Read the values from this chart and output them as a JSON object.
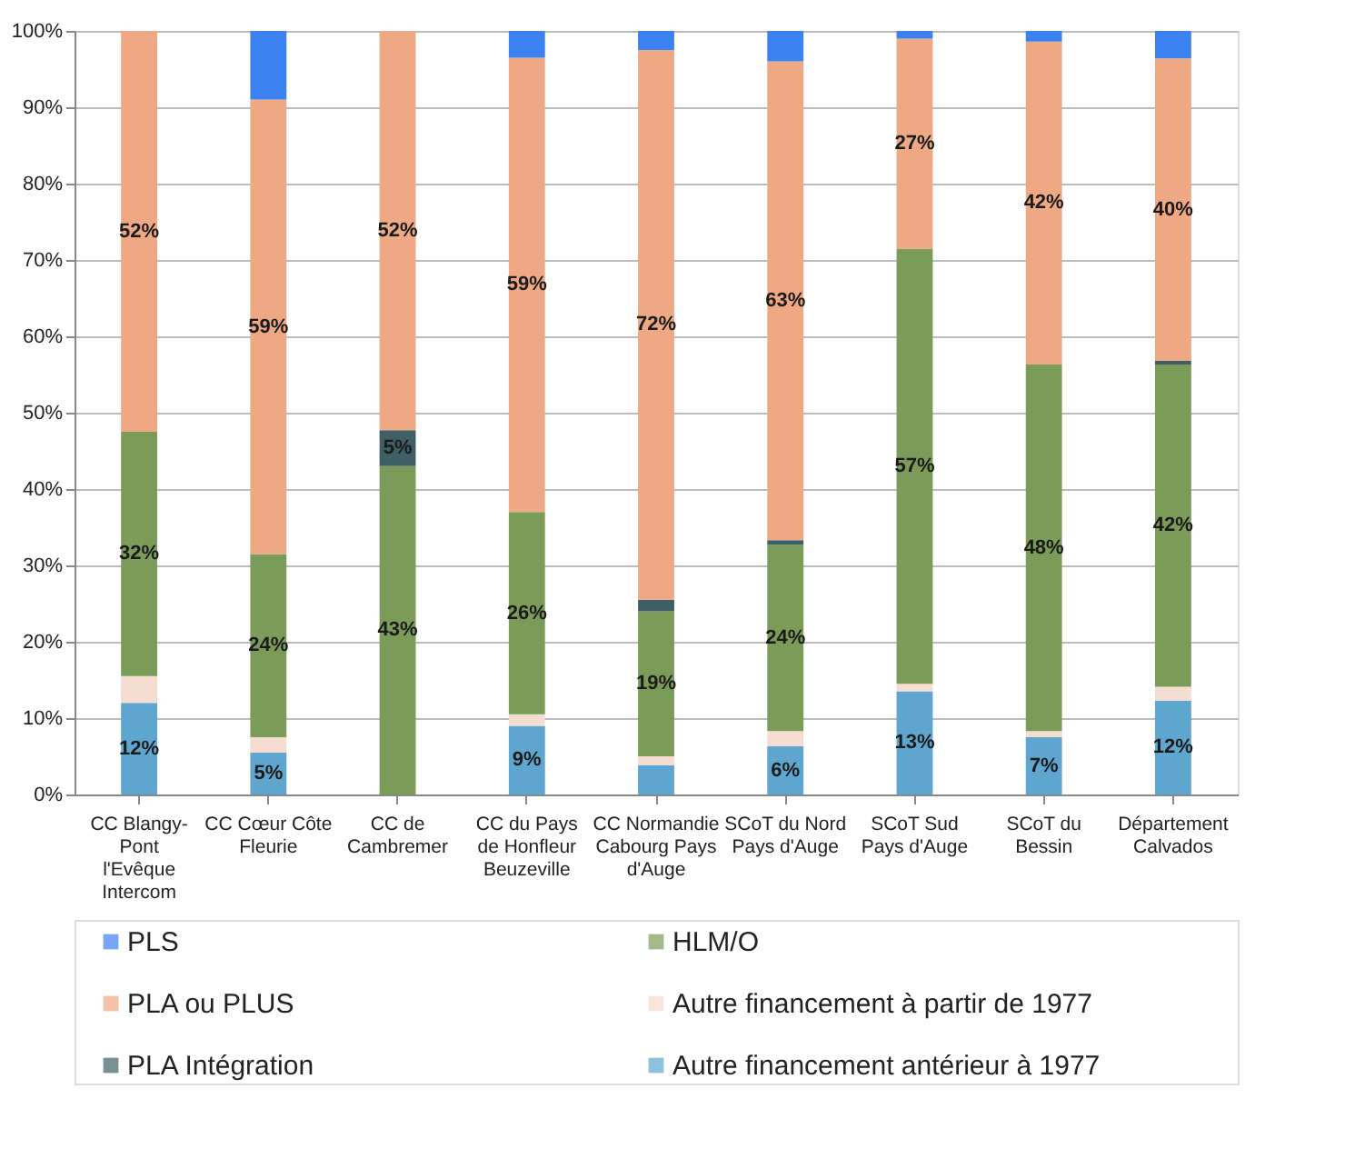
{
  "chart_data": {
    "type": "bar",
    "stacked": true,
    "categories": [
      "CC Blangy-Pont l'Evêque Intercom",
      "CC Cœur Côte Fleurie",
      "CC de Cambremer",
      "CC du Pays de Honfleur Beuzeville",
      "CC Normandie Cabourg Pays d'Auge",
      "SCoT du Nord Pays d'Auge",
      "SCoT Sud Pays d'Auge",
      "SCoT du Bessin",
      "Département Calvados"
    ],
    "series": [
      {
        "name": "Autre financement antérieur à 1977",
        "color": "#5ea6cf",
        "values": [
          12,
          5.5,
          0,
          9,
          3.8,
          6.3,
          13.5,
          7.5,
          12.3
        ],
        "value_labels": [
          "12%",
          "5%",
          null,
          "9%",
          null,
          "6%",
          "13%",
          "7%",
          "12%"
        ]
      },
      {
        "name": "Autre financement à partir de 1977",
        "color": "#f6ddd2",
        "values": [
          3.5,
          2,
          0,
          1.5,
          1.2,
          2,
          1,
          0.8,
          1.8
        ],
        "value_labels": [
          null,
          null,
          null,
          null,
          null,
          null,
          null,
          null,
          null
        ]
      },
      {
        "name": "HLM/O",
        "color": "#7a9c58",
        "values": [
          32,
          24,
          43,
          26.5,
          19,
          24.4,
          57,
          48,
          42.2
        ],
        "value_labels": [
          "32%",
          "24%",
          "43%",
          "26%",
          "19%",
          "24%",
          "57%",
          "48%",
          "42%"
        ]
      },
      {
        "name": "PLA Intégration",
        "color": "#3e5f66",
        "values": [
          0,
          0,
          4.7,
          0,
          1.5,
          0.6,
          0,
          0,
          0.5
        ],
        "value_labels": [
          null,
          null,
          "5%",
          null,
          null,
          null,
          null,
          null,
          null
        ]
      },
      {
        "name": "PLA ou PLUS",
        "color": "#eea883",
        "values": [
          52.5,
          59.5,
          52.3,
          59.5,
          72,
          62.7,
          27.5,
          42.3,
          39.6
        ],
        "value_labels": [
          "52%",
          "59%",
          "52%",
          "59%",
          "72%",
          "63%",
          "27%",
          "42%",
          "40%"
        ]
      },
      {
        "name": "PLS",
        "color": "#3b82f0",
        "values": [
          0,
          9,
          0,
          3.5,
          2.5,
          4,
          1,
          1.4,
          3.6
        ],
        "value_labels": [
          null,
          null,
          null,
          null,
          null,
          null,
          null,
          null,
          null
        ]
      }
    ],
    "ylim": [
      0,
      100
    ],
    "yticks": [
      {
        "value": 0,
        "label": "0%"
      },
      {
        "value": 10,
        "label": "10%"
      },
      {
        "value": 20,
        "label": "20%"
      },
      {
        "value": 30,
        "label": "30%"
      },
      {
        "value": 40,
        "label": "40%"
      },
      {
        "value": 50,
        "label": "50%"
      },
      {
        "value": 60,
        "label": "60%"
      },
      {
        "value": 70,
        "label": "70%"
      },
      {
        "value": 80,
        "label": "80%"
      },
      {
        "value": 90,
        "label": "90%"
      },
      {
        "value": 100,
        "label": "100%"
      }
    ],
    "grid": "y",
    "legend": "bottom"
  }
}
